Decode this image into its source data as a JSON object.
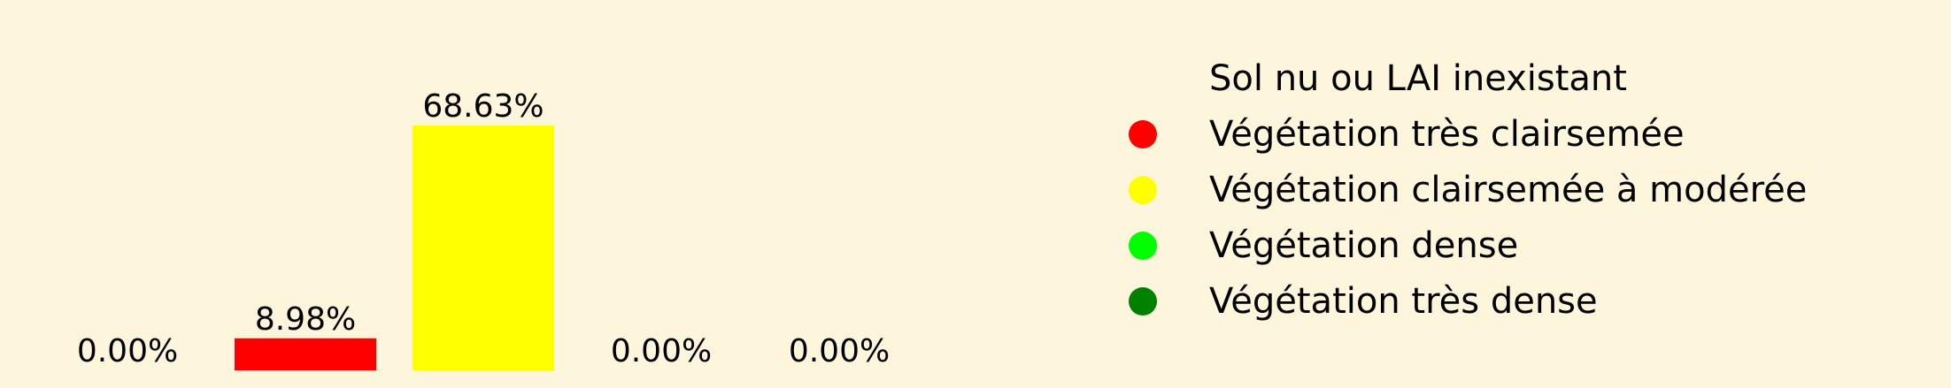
{
  "chart_data": {
    "type": "bar",
    "categories": [
      "Sol nu ou LAI inexistant",
      "Végétation très clairsemée",
      "Végétation clairsemée à modérée",
      "Végétation dense",
      "Végétation très dense"
    ],
    "values": [
      0.0,
      8.98,
      68.63,
      0.0,
      0.0
    ],
    "data_labels": [
      "0.00%",
      "8.98%",
      "68.63%",
      "0.00%",
      "0.00%"
    ],
    "colors": [
      "#fdf6dc",
      "#ff0000",
      "#ffff00",
      "#00ff00",
      "#008000"
    ],
    "title": "",
    "xlabel": "",
    "ylabel": "",
    "ylim": [
      0,
      68.63
    ],
    "grid": false,
    "legend_position": "right",
    "background": "#fdf6dc"
  }
}
